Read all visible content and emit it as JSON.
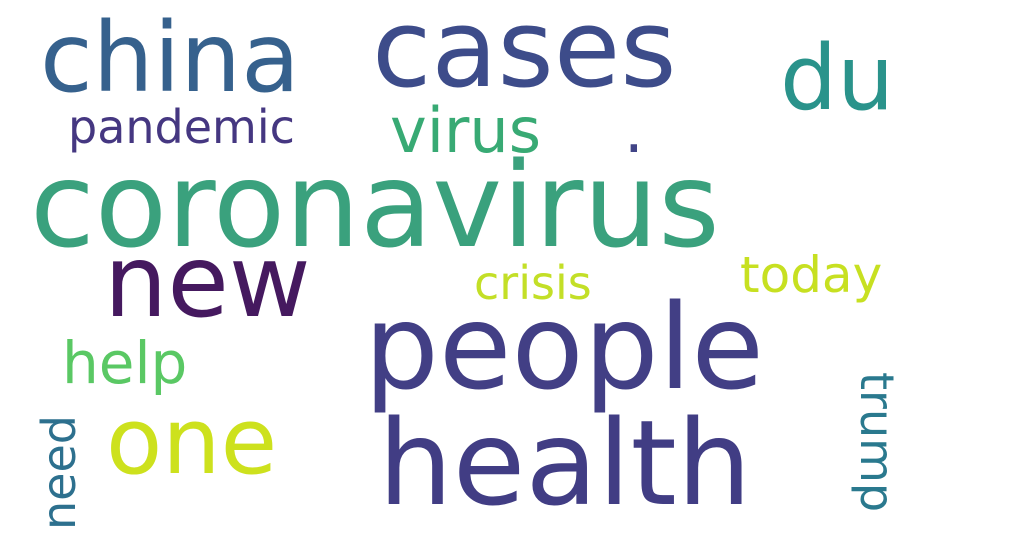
{
  "words": [
    {
      "text": "coronavirus",
      "color": "#3aa17d"
    },
    {
      "text": "people",
      "color": "#423f85"
    },
    {
      "text": "health",
      "color": "#413d84"
    },
    {
      "text": "cases",
      "color": "#3d4c8a"
    },
    {
      "text": "china",
      "color": "#36618d"
    },
    {
      "text": "new",
      "color": "#45195f"
    },
    {
      "text": "one",
      "color": "#cde11d"
    },
    {
      "text": "du",
      "color": "#2a938b"
    },
    {
      "text": "virus",
      "color": "#38aa74"
    },
    {
      "text": "help",
      "color": "#5ac864"
    },
    {
      "text": "pandemic",
      "color": "#453781"
    },
    {
      "text": "crisis",
      "color": "#c3df27"
    },
    {
      "text": "today",
      "color": "#c7e021"
    },
    {
      "text": "need",
      "color": "#2d708e"
    },
    {
      "text": "trump",
      "color": "#2a798e"
    },
    {
      "text": ".",
      "color": "#414487"
    }
  ]
}
